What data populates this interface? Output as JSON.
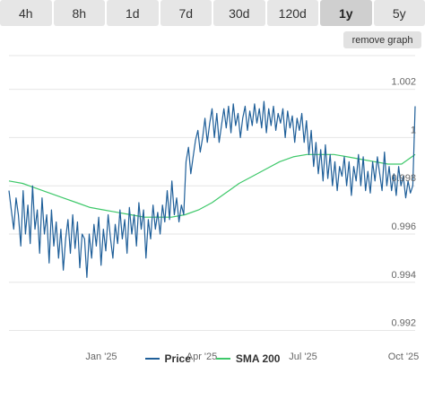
{
  "tabs": [
    {
      "label": "4h",
      "active": false
    },
    {
      "label": "8h",
      "active": false
    },
    {
      "label": "1d",
      "active": false
    },
    {
      "label": "7d",
      "active": false
    },
    {
      "label": "30d",
      "active": false
    },
    {
      "label": "120d",
      "active": false
    },
    {
      "label": "1y",
      "active": true
    },
    {
      "label": "5y",
      "active": false
    }
  ],
  "remove_graph_label": "remove graph",
  "colors": {
    "price": "#1f5f99",
    "sma": "#3ec86a",
    "grid": "#e6e6e6"
  },
  "chart_data": {
    "type": "line",
    "x_ticks": [
      "Jan '25",
      "Apr '25",
      "Jul '25",
      "Oct '25"
    ],
    "y_ticks": [
      0.992,
      0.994,
      0.996,
      0.998,
      1,
      1.002
    ],
    "ylim": [
      0.9915,
      1.0034
    ],
    "grid": "horizontal",
    "legend_position": "bottom",
    "series": [
      {
        "name": "Price",
        "color": "#1f5f99",
        "values": [
          0.9978,
          0.997,
          0.9962,
          0.9975,
          0.9968,
          0.9955,
          0.9978,
          0.996,
          0.9972,
          0.9956,
          0.998,
          0.9962,
          0.997,
          0.9952,
          0.9975,
          0.996,
          0.9968,
          0.9948,
          0.997,
          0.9955,
          0.9965,
          0.995,
          0.9962,
          0.9945,
          0.9958,
          0.9966,
          0.9952,
          0.9968,
          0.9954,
          0.9965,
          0.9946,
          0.996,
          0.9958,
          0.9942,
          0.996,
          0.995,
          0.9964,
          0.9955,
          0.9967,
          0.9947,
          0.9962,
          0.9953,
          0.9968,
          0.9958,
          0.995,
          0.9964,
          0.9956,
          0.997,
          0.9958,
          0.9966,
          0.9952,
          0.9971,
          0.996,
          0.9968,
          0.9955,
          0.9973,
          0.9962,
          0.997,
          0.995,
          0.9966,
          0.9958,
          0.9972,
          0.9962,
          0.9969,
          0.996,
          0.9972,
          0.9965,
          0.9978,
          0.9966,
          0.9982,
          0.9968,
          0.9975,
          0.9965,
          0.9972,
          0.9968,
          0.999,
          0.9996,
          0.9985,
          0.9992,
          0.9999,
          1.0003,
          0.9994,
          1.0,
          1.0008,
          0.9998,
          1.0006,
          1.0012,
          1.0,
          1.001,
          0.9998,
          1.0005,
          1.0012,
          1.0004,
          1.0013,
          1.0002,
          1.0014,
          1.0005,
          1.001,
          1.0,
          1.0008,
          1.0013,
          1.0003,
          1.0011,
          1.0005,
          1.0014,
          1.0006,
          1.0012,
          1.0004,
          1.0015,
          1.0002,
          1.0012,
          1.0005,
          1.0013,
          1.0003,
          1.001,
          1.0006,
          1.0012,
          1.0,
          1.0011,
          1.0004,
          1.0009,
          0.9998,
          1.0008,
          1.0003,
          1.001,
          0.9998,
          1.0007,
          0.9993,
          1.0003,
          0.9988,
          0.9998,
          0.9985,
          0.9995,
          0.9982,
          0.9997,
          0.9983,
          0.9993,
          0.998,
          0.999,
          0.9978,
          0.9988,
          0.9984,
          0.9992,
          0.998,
          0.999,
          0.9976,
          0.9988,
          0.9982,
          0.9993,
          0.998,
          0.9992,
          0.9978,
          0.9986,
          0.9977,
          0.999,
          0.9982,
          0.9992,
          0.9985,
          0.9978,
          0.9994,
          0.998,
          0.9988,
          0.9978,
          0.9985,
          0.9976,
          0.9988,
          0.998,
          0.9984,
          0.9975,
          0.9982,
          0.9977,
          0.998,
          1.0013
        ]
      },
      {
        "name": "SMA 200",
        "color": "#3ec86a",
        "values": [
          0.9982,
          0.9981,
          0.9979,
          0.9977,
          0.9975,
          0.9973,
          0.9971,
          0.997,
          0.9969,
          0.9968,
          0.9967,
          0.9967,
          0.9967,
          0.9968,
          0.997,
          0.9973,
          0.9977,
          0.9981,
          0.9984,
          0.9987,
          0.999,
          0.9992,
          0.9993,
          0.9993,
          0.9993,
          0.9992,
          0.9991,
          0.999,
          0.9989,
          0.9989,
          0.9993
        ]
      }
    ]
  }
}
